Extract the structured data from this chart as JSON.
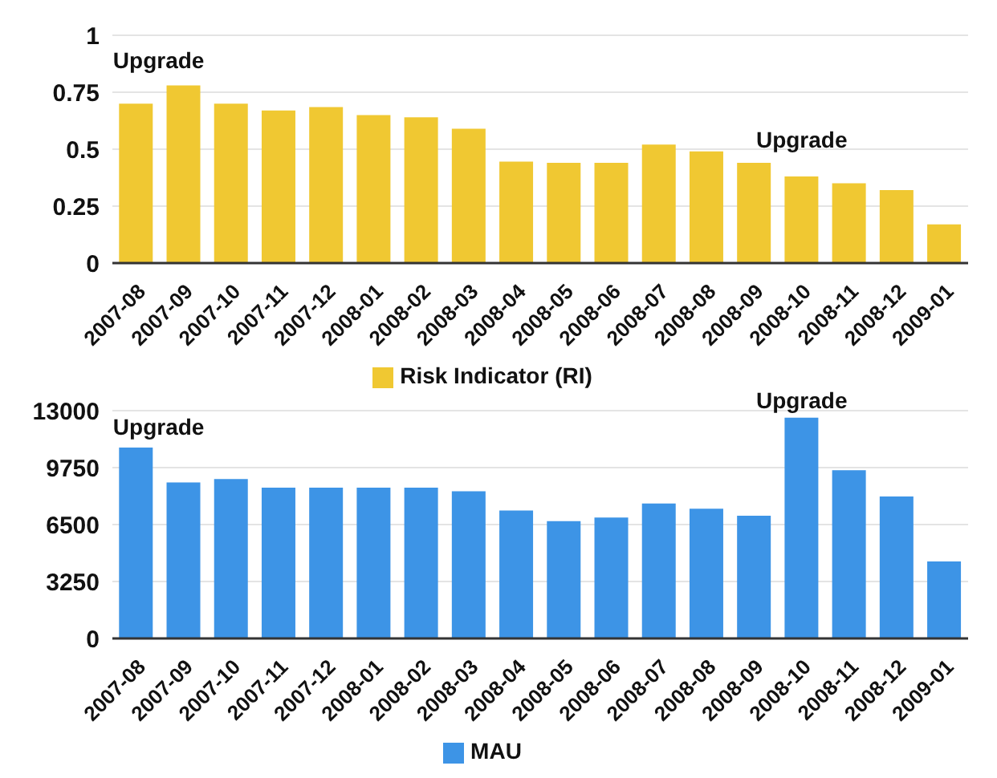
{
  "chart_data": [
    {
      "type": "bar",
      "categories": [
        "2007-08",
        "2007-09",
        "2007-10",
        "2007-11",
        "2007-12",
        "2008-01",
        "2008-02",
        "2008-03",
        "2008-04",
        "2008-05",
        "2008-06",
        "2008-07",
        "2008-08",
        "2008-09",
        "2008-10",
        "2008-11",
        "2008-12",
        "2009-01"
      ],
      "series": [
        {
          "name": "Risk Indicator (RI)",
          "color": "#f0c832",
          "values": [
            0.7,
            0.78,
            0.7,
            0.67,
            0.685,
            0.65,
            0.64,
            0.59,
            0.445,
            0.44,
            0.44,
            0.52,
            0.49,
            0.44,
            0.38,
            0.35,
            0.32,
            0.17
          ]
        }
      ],
      "ylim": [
        0,
        1
      ],
      "yticks": [
        0,
        0.25,
        0.5,
        0.75,
        1
      ],
      "grid": "y",
      "legend": "bottom",
      "annotations": [
        {
          "text": "Upgrade",
          "x": "2007-08",
          "y": 0.7
        },
        {
          "text": "Upgrade",
          "x": "2008-10",
          "y": 0.38
        }
      ]
    },
    {
      "type": "bar",
      "categories": [
        "2007-08",
        "2007-09",
        "2007-10",
        "2007-11",
        "2007-12",
        "2008-01",
        "2008-02",
        "2008-03",
        "2008-04",
        "2008-05",
        "2008-06",
        "2008-07",
        "2008-08",
        "2008-09",
        "2008-10",
        "2008-11",
        "2008-12",
        "2009-01"
      ],
      "series": [
        {
          "name": "MAU",
          "color": "#3d94e6",
          "values": [
            10900,
            8900,
            9100,
            8600,
            8600,
            8600,
            8600,
            8400,
            7300,
            6700,
            6900,
            7700,
            7400,
            7000,
            12600,
            9600,
            8100,
            4400
          ]
        }
      ],
      "ylim": [
        0,
        13000
      ],
      "yticks": [
        0,
        3250,
        6500,
        9750,
        13000
      ],
      "grid": "y",
      "legend": "bottom",
      "annotations": [
        {
          "text": "Upgrade",
          "x": "2007-08",
          "y": 10900
        },
        {
          "text": "Upgrade",
          "x": "2008-10",
          "y": 12600
        }
      ]
    }
  ]
}
